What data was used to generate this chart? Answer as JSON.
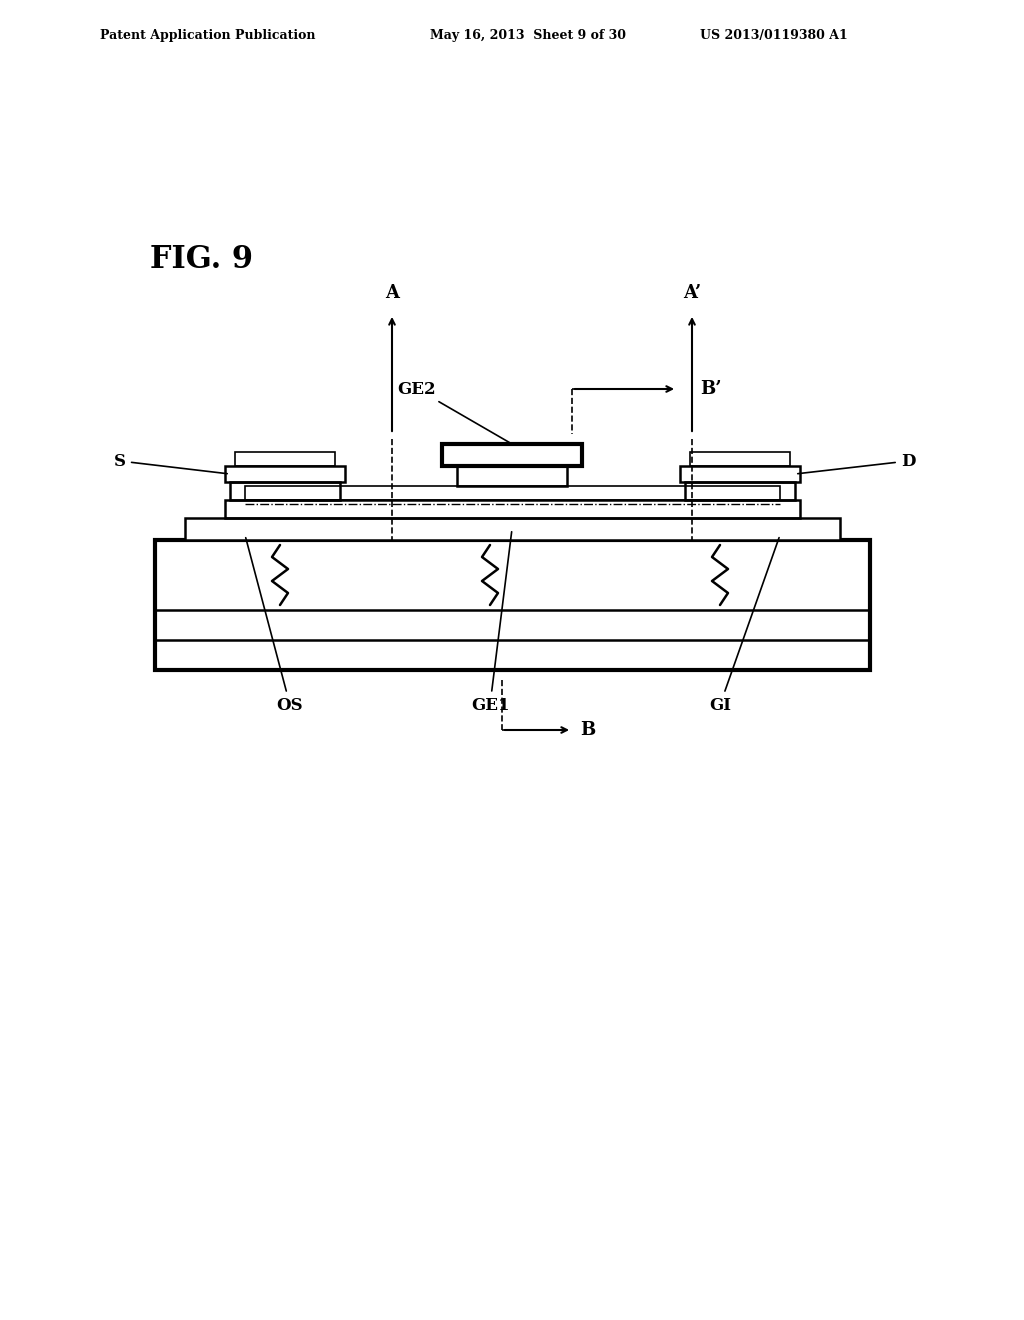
{
  "bg_color": "#ffffff",
  "line_color": "#000000",
  "header_left": "Patent Application Publication",
  "header_mid": "May 16, 2013  Sheet 9 of 30",
  "header_right": "US 2013/0119380 A1",
  "fig_label": "FIG. 9",
  "labels": {
    "A": "A",
    "A_prime": "A’",
    "B": "B",
    "B_prime": "B’",
    "GE2": "GE2",
    "GE1": "GE1",
    "GI": "GI",
    "OS": "OS",
    "S": "S",
    "D": "D"
  }
}
